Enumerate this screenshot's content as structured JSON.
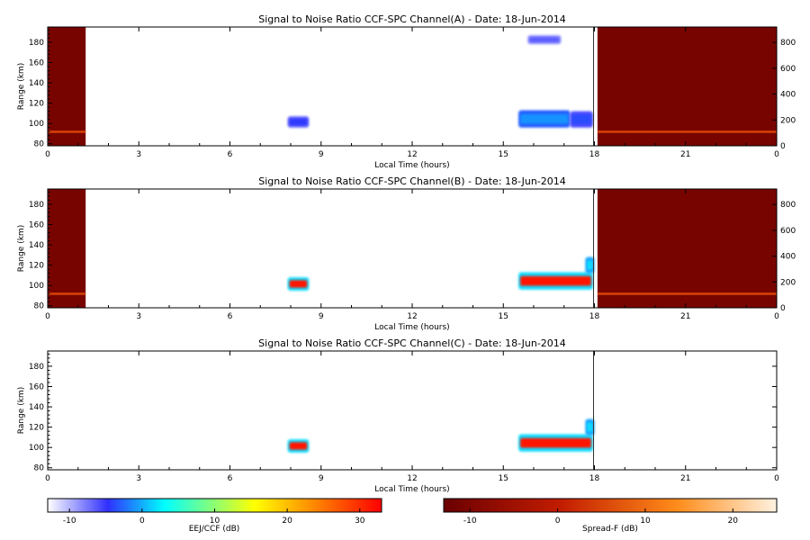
{
  "chart_data": [
    {
      "type": "heatmap",
      "title": "Signal to Noise Ratio CCF-SPC Channel(A) - Date: 18-Jun-2014",
      "xlabel": "Local Time (hours)",
      "ylabel": "Range (km)",
      "xlim": [
        0,
        24
      ],
      "ylim": [
        78,
        195
      ],
      "x_ticks": [
        "0",
        "3",
        "6",
        "9",
        "12",
        "15",
        "18",
        "21",
        "0"
      ],
      "y_ticks": [
        "80",
        "100",
        "120",
        "140",
        "160",
        "180"
      ],
      "y2_ticks": [
        "0",
        "200",
        "400",
        "600",
        "800"
      ],
      "y2lim": [
        0,
        920
      ],
      "series": [
        {
          "name": "EEJ/CCF",
          "colorscale": "eej",
          "regions": [
            {
              "x": [
                7.9,
                8.6
              ],
              "y": [
                96,
                107
              ],
              "value": -1
            },
            {
              "x": [
                15.5,
                17.2
              ],
              "y": [
                96,
                113
              ],
              "value": 4
            },
            {
              "x": [
                17.2,
                17.95
              ],
              "y": [
                96,
                112
              ],
              "value": 0
            },
            {
              "x": [
                15.8,
                16.9
              ],
              "y": [
                178,
                187
              ],
              "value": -4
            }
          ]
        },
        {
          "name": "Spread-F",
          "colorscale": "spreadf",
          "regions": [
            {
              "x": [
                0,
                1.25
              ],
              "y": [
                78,
                195
              ],
              "value": -11
            },
            {
              "x": [
                18.1,
                24
              ],
              "y": [
                78,
                195
              ],
              "value": -11
            }
          ],
          "layer_y": 92,
          "layer_value": 4
        }
      ]
    },
    {
      "type": "heatmap",
      "title": "Signal to Noise Ratio CCF-SPC Channel(B) - Date: 18-Jun-2014",
      "xlabel": "Local Time (hours)",
      "ylabel": "Range (km)",
      "xlim": [
        0,
        24
      ],
      "ylim": [
        78,
        195
      ],
      "x_ticks": [
        "0",
        "3",
        "6",
        "9",
        "12",
        "15",
        "18",
        "21",
        "0"
      ],
      "y_ticks": [
        "80",
        "100",
        "120",
        "140",
        "160",
        "180"
      ],
      "y2_ticks": [
        "0",
        "200",
        "400",
        "600",
        "800"
      ],
      "y2lim": [
        0,
        920
      ],
      "series": [
        {
          "name": "EEJ/CCF",
          "colorscale": "eej",
          "regions": [
            {
              "x": [
                7.9,
                8.6
              ],
              "y": [
                95,
                108
              ],
              "value": 32
            },
            {
              "x": [
                15.5,
                17.95
              ],
              "y": [
                96,
                113
              ],
              "value": 32
            },
            {
              "x": [
                17.7,
                18.0
              ],
              "y": [
                112,
                128
              ],
              "value": 8
            }
          ]
        },
        {
          "name": "Spread-F",
          "colorscale": "spreadf",
          "regions": [
            {
              "x": [
                0,
                1.25
              ],
              "y": [
                78,
                195
              ],
              "value": -11
            },
            {
              "x": [
                18.1,
                24
              ],
              "y": [
                78,
                195
              ],
              "value": -11
            }
          ],
          "layer_y": 92,
          "layer_value": 4
        }
      ]
    },
    {
      "type": "heatmap",
      "title": "Signal to Noise Ratio CCF-SPC Channel(C) - Date: 18-Jun-2014",
      "xlabel": "Local Time (hours)",
      "ylabel": "Range (km)",
      "xlim": [
        0,
        24
      ],
      "ylim": [
        78,
        195
      ],
      "x_ticks": [
        "0",
        "3",
        "6",
        "9",
        "12",
        "15",
        "18",
        "21",
        "0"
      ],
      "y_ticks": [
        "80",
        "100",
        "120",
        "140",
        "160",
        "180"
      ],
      "series": [
        {
          "name": "EEJ/CCF",
          "colorscale": "eej",
          "regions": [
            {
              "x": [
                7.9,
                8.6
              ],
              "y": [
                95,
                108
              ],
              "value": 32
            },
            {
              "x": [
                15.5,
                17.95
              ],
              "y": [
                96,
                113
              ],
              "value": 32
            },
            {
              "x": [
                17.7,
                18.0
              ],
              "y": [
                112,
                128
              ],
              "value": 8
            }
          ]
        }
      ]
    }
  ],
  "colorbars": [
    {
      "label": "EEJ/CCF (dB)",
      "range": [
        -13,
        33
      ],
      "ticks": [
        "-10",
        "0",
        "10",
        "20",
        "30"
      ],
      "tick_values": [
        -10,
        0,
        10,
        20,
        30
      ]
    },
    {
      "label": "Spread-F (dB)",
      "range": [
        -13,
        25
      ],
      "ticks": [
        "-10",
        "0",
        "10",
        "20"
      ],
      "tick_values": [
        -10,
        0,
        10,
        20
      ]
    }
  ],
  "colors": {
    "eej": [
      "#ffffff",
      "#3030ff",
      "#00ffff",
      "#ffff00",
      "#ff0000"
    ],
    "spreadf": [
      "#6a0000",
      "#c21c00",
      "#ff8c1a",
      "#fff2e0"
    ]
  }
}
